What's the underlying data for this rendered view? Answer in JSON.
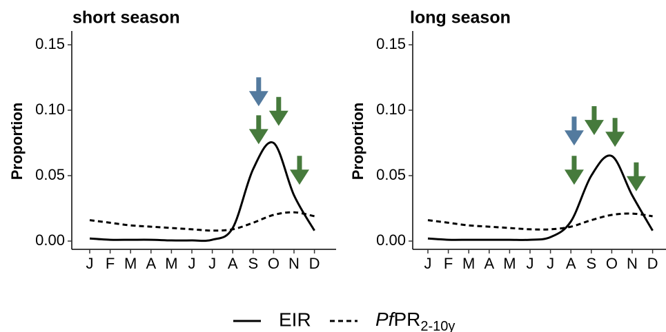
{
  "chart_data": [
    {
      "type": "line",
      "title": "short season",
      "y_label": "Proportion",
      "categories": [
        "J",
        "F",
        "M",
        "A",
        "M",
        "J",
        "J",
        "A",
        "S",
        "O",
        "N",
        "D"
      ],
      "ylim": [
        0,
        0.15
      ],
      "yticks": [
        {
          "value": 0,
          "label": "0.00"
        },
        {
          "value": 0.05,
          "label": "0.05"
        },
        {
          "value": 0.1,
          "label": "0.10"
        },
        {
          "value": 0.15,
          "label": "0.15"
        }
      ],
      "series": [
        {
          "name": "EIR",
          "color": "#000000",
          "dash": "solid",
          "values": [
            0.002,
            0.001,
            0.001,
            0.001,
            0.0005,
            0.0005,
            0.001,
            0.01,
            0.055,
            0.075,
            0.035,
            0.008
          ]
        },
        {
          "name_parts": [
            {
              "text": "Pf",
              "style": "italic"
            },
            {
              "text": "PR",
              "style": "normal"
            },
            {
              "text": "2-10y",
              "style": "sub"
            }
          ],
          "color": "#000000",
          "dash": "dashed",
          "values": [
            0.016,
            0.014,
            0.012,
            0.011,
            0.01,
            0.009,
            0.008,
            0.009,
            0.014,
            0.02,
            0.022,
            0.019
          ]
        }
      ],
      "arrows": [
        {
          "x": 9.27,
          "y": 0.103,
          "color": "#537a9e"
        },
        {
          "x": 9.27,
          "y": 0.074,
          "color": "#467a3c"
        },
        {
          "x": 10.25,
          "y": 0.088,
          "color": "#467a3c"
        },
        {
          "x": 11.27,
          "y": 0.043,
          "color": "#467a3c"
        }
      ]
    },
    {
      "type": "line",
      "title": "long season",
      "y_label": "Proportion",
      "categories": [
        "J",
        "F",
        "M",
        "A",
        "M",
        "J",
        "J",
        "A",
        "S",
        "O",
        "N",
        "D"
      ],
      "ylim": [
        0,
        0.15
      ],
      "yticks": [
        {
          "value": 0,
          "label": "0.00"
        },
        {
          "value": 0.05,
          "label": "0.05"
        },
        {
          "value": 0.1,
          "label": "0.10"
        },
        {
          "value": 0.15,
          "label": "0.15"
        }
      ],
      "series": [
        {
          "name": "EIR",
          "color": "#000000",
          "dash": "solid",
          "values": [
            0.002,
            0.001,
            0.001,
            0.001,
            0.001,
            0.001,
            0.003,
            0.015,
            0.05,
            0.065,
            0.035,
            0.008
          ]
        },
        {
          "name_parts": [
            {
              "text": "Pf",
              "style": "italic"
            },
            {
              "text": "PR",
              "style": "normal"
            },
            {
              "text": "2-10y",
              "style": "sub"
            }
          ],
          "color": "#000000",
          "dash": "dashed",
          "values": [
            0.016,
            0.014,
            0.012,
            0.011,
            0.01,
            0.009,
            0.009,
            0.011,
            0.016,
            0.02,
            0.021,
            0.019
          ]
        }
      ],
      "arrows": [
        {
          "x": 8.16,
          "y": 0.073,
          "color": "#537a9e"
        },
        {
          "x": 8.16,
          "y": 0.043,
          "color": "#467a3c"
        },
        {
          "x": 9.14,
          "y": 0.081,
          "color": "#467a3c"
        },
        {
          "x": 10.16,
          "y": 0.072,
          "color": "#467a3c"
        },
        {
          "x": 11.2,
          "y": 0.038,
          "color": "#467a3c"
        }
      ]
    }
  ]
}
